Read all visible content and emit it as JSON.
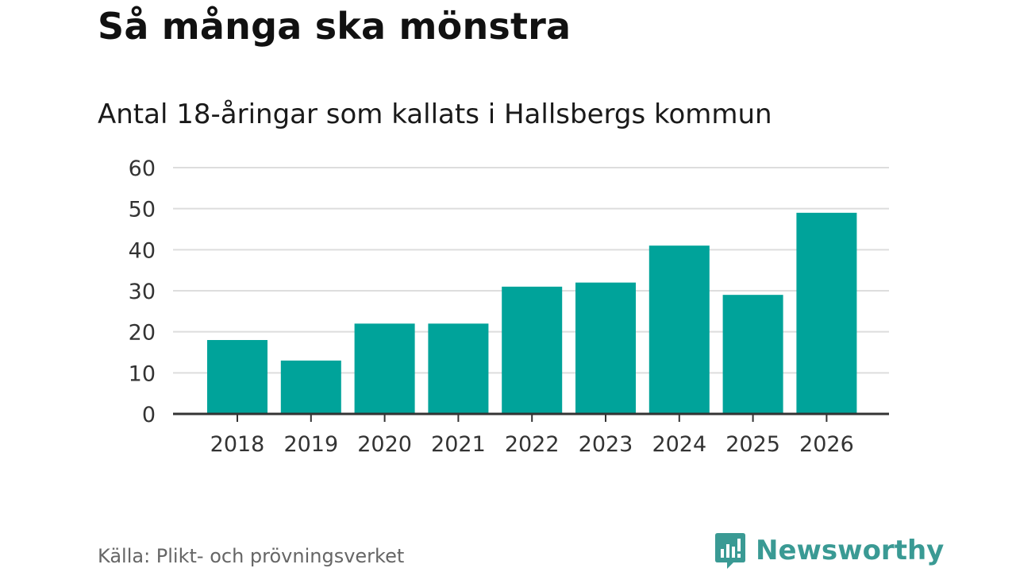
{
  "header": {
    "title": "Så många ska mönstra",
    "subtitle": "Antal 18-åringar som kallats i Hallsbergs kommun"
  },
  "footer": {
    "source": "Källa: Plikt- och prövningsverket",
    "brand": "Newsworthy",
    "brand_icon": "newsworthy-logo-icon"
  },
  "colors": {
    "bar": "#00a39a",
    "grid": "#dddddd",
    "axis": "#333333",
    "brand": "#3a9a94"
  },
  "chart_data": {
    "type": "bar",
    "title": "Så många ska mönstra",
    "subtitle": "Antal 18-åringar som kallats i Hallsbergs kommun",
    "categories": [
      "2018",
      "2019",
      "2020",
      "2021",
      "2022",
      "2023",
      "2024",
      "2025",
      "2026"
    ],
    "values": [
      18,
      13,
      22,
      22,
      31,
      32,
      41,
      29,
      49
    ],
    "xlabel": "",
    "ylabel": "",
    "ylim": [
      0,
      60
    ],
    "yticks": [
      0,
      10,
      20,
      30,
      40,
      50,
      60
    ],
    "grid": true,
    "legend": "none"
  }
}
